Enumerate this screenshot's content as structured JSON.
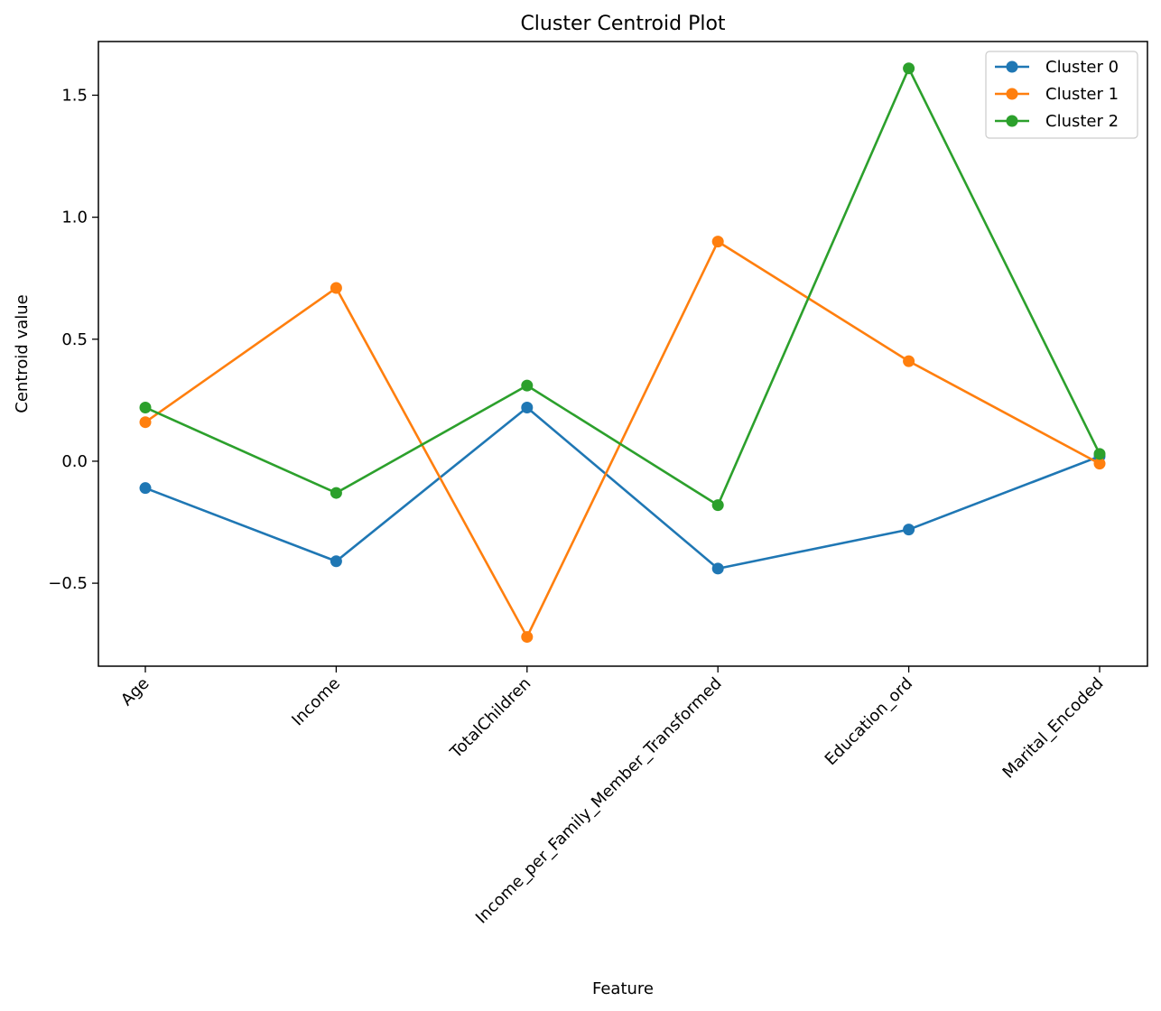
{
  "chart_data": {
    "type": "line",
    "title": "Cluster Centroid Plot",
    "xlabel": "Feature",
    "ylabel": "Centroid value",
    "categories": [
      "Age",
      "Income",
      "TotalChildren",
      "Income_per_Family_Member_Transformed",
      "Education_ord",
      "Marital_Encoded"
    ],
    "yticks": [
      -0.5,
      0.0,
      0.5,
      1.0,
      1.5
    ],
    "ytick_labels": [
      "−0.5",
      "0.0",
      "0.5",
      "1.0",
      "1.5"
    ],
    "ylim": [
      -0.84,
      1.72
    ],
    "grid": false,
    "legend_position": "top-right",
    "series": [
      {
        "name": "Cluster 0",
        "color": "#1f77b4",
        "marker": "circle",
        "values": [
          -0.11,
          -0.41,
          0.22,
          -0.44,
          -0.28,
          0.02
        ]
      },
      {
        "name": "Cluster 1",
        "color": "#ff7f0e",
        "marker": "circle",
        "values": [
          0.16,
          0.71,
          -0.72,
          0.9,
          0.41,
          -0.01
        ]
      },
      {
        "name": "Cluster 2",
        "color": "#2ca02c",
        "marker": "circle",
        "values": [
          0.22,
          -0.13,
          0.31,
          -0.18,
          1.61,
          0.03
        ]
      }
    ]
  }
}
